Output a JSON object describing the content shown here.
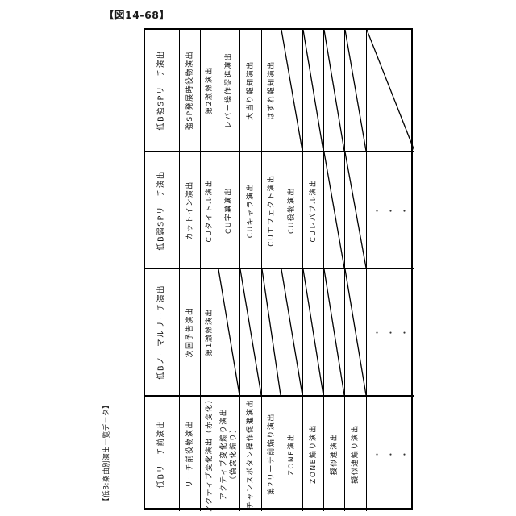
{
  "page": {
    "title": "【図14-68】",
    "side_label": "【低B:楽曲別演出一覧データ】"
  },
  "table": {
    "ellipsis": "・・・",
    "groups": [
      {
        "header": "低B強SPリーチ演出",
        "cells": [
          {
            "text": "強SP発展時役物演出"
          },
          {
            "text": "第2激熱演出"
          },
          {
            "text": "レバー操作促進演出"
          },
          {
            "text": "大当り報知演出"
          },
          {
            "text": "はずれ報知演出"
          },
          {
            "diag": true
          },
          {
            "diag": true
          },
          {
            "diag": true
          },
          {
            "diag": true
          },
          {
            "diag": true
          }
        ]
      },
      {
        "header": "低B弱SPリーチ演出",
        "cells": [
          {
            "text": "カットイン演出"
          },
          {
            "text": "CUタイトル演出"
          },
          {
            "text": "CU字幕演出"
          },
          {
            "text": "CUキャラ演出"
          },
          {
            "text": "CUエフェクト演出"
          },
          {
            "text": "CU役物演出"
          },
          {
            "text": "CUレバブル演出"
          },
          {
            "diag": true
          },
          {
            "diag": true
          },
          {
            "dots": true
          }
        ]
      },
      {
        "header": "低Bノーマルリーチ演出",
        "cells": [
          {
            "text": "次回予告演出"
          },
          {
            "text": "第1激熱演出"
          },
          {
            "diag": true
          },
          {
            "diag": true
          },
          {
            "diag": true
          },
          {
            "diag": true
          },
          {
            "diag": true
          },
          {
            "diag": true
          },
          {
            "diag": true
          },
          {
            "dots": true
          }
        ]
      },
      {
        "header": "低Bリーチ前演出",
        "cells": [
          {
            "text": "リーチ前役物演出"
          },
          {
            "text": "アクティブ変化演出（赤変化）"
          },
          {
            "text": "アクティブ変化煽り演出\n（偽変化煽り）"
          },
          {
            "text": "チャンスボタン操作促進演出"
          },
          {
            "text": "第2リーチ前煽り演出"
          },
          {
            "text": "ZONE演出"
          },
          {
            "text": "ZONE煽り演出"
          },
          {
            "text": "擬似連演出"
          },
          {
            "text": "擬似連煽り演出"
          },
          {
            "dots": true
          }
        ]
      }
    ]
  }
}
